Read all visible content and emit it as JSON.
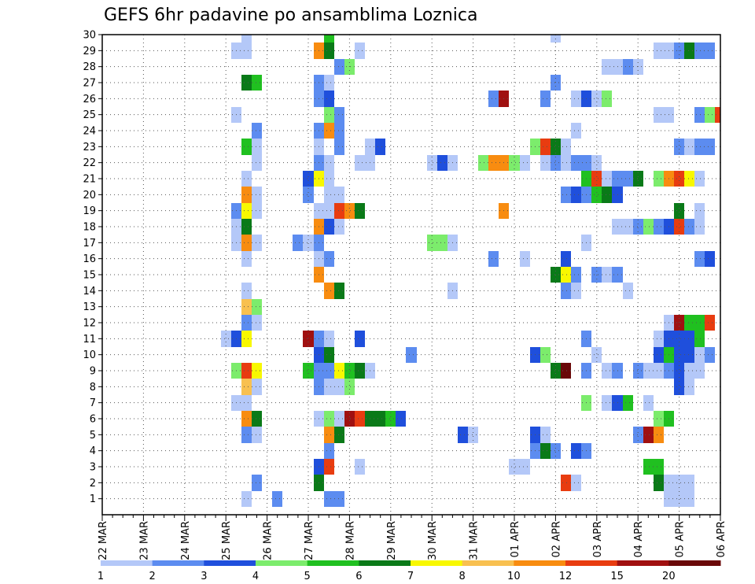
{
  "chart_data": {
    "type": "heatmap",
    "title": "GEFS 6hr padavine po ansamblima Loznica",
    "xlabel": "",
    "ylabel": "",
    "x_tick_labels": [
      "22 MAR",
      "23 MAR",
      "24 MAR",
      "25 MAR",
      "26 MAR",
      "27 MAR",
      "28 MAR",
      "29 MAR",
      "30 MAR",
      "31 MAR",
      "01 APR",
      "02 APR",
      "03 APR",
      "04 APR",
      "05 APR",
      "06 APR"
    ],
    "y_tick_labels": [
      "1",
      "2",
      "3",
      "4",
      "5",
      "6",
      "7",
      "8",
      "9",
      "10",
      "11",
      "12",
      "13",
      "14",
      "15",
      "16",
      "17",
      "18",
      "19",
      "20",
      "21",
      "22",
      "23",
      "24",
      "25",
      "26",
      "27",
      "28",
      "29",
      "30"
    ],
    "xlim": [
      0,
      60
    ],
    "ylim": [
      0,
      30
    ],
    "x_unit": "6-hour step from 22 MAR 00Z",
    "y_unit": "ensemble member",
    "grid": true,
    "colorbar": {
      "position": "bottom",
      "ticks": [
        "1",
        "2",
        "3",
        "4",
        "5",
        "6",
        "7",
        "8",
        "10",
        "12",
        "15",
        "20"
      ],
      "colors": [
        "#b4c8f8",
        "#5c8cf0",
        "#1f4fdc",
        "#7cec6c",
        "#20c020",
        "#0a7a18",
        "#f8f800",
        "#f8c050",
        "#f88c10",
        "#e83c10",
        "#a01010",
        "#6a0808"
      ]
    },
    "cells_legend": "each cell: [x step, ensemble member, precipitation class index into colorbar.colors]",
    "cells": [
      [
        14,
        1,
        0
      ],
      [
        17,
        1,
        1
      ],
      [
        22,
        1,
        1
      ],
      [
        23,
        1,
        1
      ],
      [
        55,
        1,
        0
      ],
      [
        56,
        1,
        0
      ],
      [
        57,
        1,
        0
      ],
      [
        15,
        2,
        1
      ],
      [
        21,
        2,
        5
      ],
      [
        45,
        2,
        9
      ],
      [
        46,
        2,
        0
      ],
      [
        54,
        2,
        5
      ],
      [
        55,
        2,
        0
      ],
      [
        56,
        2,
        0
      ],
      [
        57,
        2,
        0
      ],
      [
        21,
        3,
        2
      ],
      [
        22,
        3,
        9
      ],
      [
        25,
        3,
        0
      ],
      [
        40,
        3,
        0
      ],
      [
        41,
        3,
        0
      ],
      [
        53,
        3,
        4
      ],
      [
        54,
        3,
        4
      ],
      [
        22,
        4,
        1
      ],
      [
        42,
        4,
        1
      ],
      [
        43,
        4,
        5
      ],
      [
        44,
        4,
        1
      ],
      [
        46,
        4,
        2
      ],
      [
        47,
        4,
        1
      ],
      [
        14,
        5,
        1
      ],
      [
        15,
        5,
        0
      ],
      [
        22,
        5,
        8
      ],
      [
        23,
        5,
        5
      ],
      [
        35,
        5,
        2
      ],
      [
        36,
        5,
        0
      ],
      [
        42,
        5,
        2
      ],
      [
        43,
        5,
        0
      ],
      [
        52,
        5,
        1
      ],
      [
        53,
        5,
        10
      ],
      [
        54,
        5,
        8
      ],
      [
        14,
        6,
        8
      ],
      [
        15,
        6,
        5
      ],
      [
        21,
        6,
        0
      ],
      [
        22,
        6,
        3
      ],
      [
        23,
        6,
        0
      ],
      [
        24,
        6,
        10
      ],
      [
        25,
        6,
        9
      ],
      [
        26,
        6,
        5
      ],
      [
        27,
        6,
        5
      ],
      [
        28,
        6,
        4
      ],
      [
        29,
        6,
        2
      ],
      [
        54,
        6,
        3
      ],
      [
        55,
        6,
        4
      ],
      [
        13,
        7,
        0
      ],
      [
        14,
        7,
        0
      ],
      [
        47,
        7,
        3
      ],
      [
        49,
        7,
        0
      ],
      [
        50,
        7,
        2
      ],
      [
        51,
        7,
        4
      ],
      [
        53,
        7,
        0
      ],
      [
        14,
        8,
        7
      ],
      [
        15,
        8,
        0
      ],
      [
        21,
        8,
        1
      ],
      [
        22,
        8,
        0
      ],
      [
        23,
        8,
        0
      ],
      [
        24,
        8,
        3
      ],
      [
        56,
        8,
        2
      ],
      [
        57,
        8,
        0
      ],
      [
        13,
        9,
        3
      ],
      [
        14,
        9,
        9
      ],
      [
        15,
        9,
        6
      ],
      [
        20,
        9,
        4
      ],
      [
        21,
        9,
        1
      ],
      [
        22,
        9,
        1
      ],
      [
        23,
        9,
        6
      ],
      [
        24,
        9,
        4
      ],
      [
        25,
        9,
        5
      ],
      [
        26,
        9,
        0
      ],
      [
        44,
        9,
        5
      ],
      [
        45,
        9,
        11
      ],
      [
        47,
        9,
        1
      ],
      [
        49,
        9,
        0
      ],
      [
        50,
        9,
        1
      ],
      [
        52,
        9,
        1
      ],
      [
        53,
        9,
        0
      ],
      [
        54,
        9,
        0
      ],
      [
        55,
        9,
        1
      ],
      [
        56,
        9,
        2
      ],
      [
        57,
        9,
        0
      ],
      [
        58,
        9,
        0
      ],
      [
        21,
        10,
        2
      ],
      [
        22,
        10,
        5
      ],
      [
        30,
        10,
        1
      ],
      [
        42,
        10,
        2
      ],
      [
        43,
        10,
        3
      ],
      [
        48,
        10,
        0
      ],
      [
        54,
        10,
        2
      ],
      [
        55,
        10,
        4
      ],
      [
        56,
        10,
        2
      ],
      [
        57,
        10,
        2
      ],
      [
        58,
        10,
        0
      ],
      [
        59,
        10,
        1
      ],
      [
        12,
        11,
        0
      ],
      [
        13,
        11,
        2
      ],
      [
        14,
        11,
        6
      ],
      [
        20,
        11,
        10
      ],
      [
        21,
        11,
        1
      ],
      [
        22,
        11,
        0
      ],
      [
        25,
        11,
        2
      ],
      [
        47,
        11,
        1
      ],
      [
        54,
        11,
        0
      ],
      [
        55,
        11,
        2
      ],
      [
        56,
        11,
        2
      ],
      [
        57,
        11,
        2
      ],
      [
        58,
        11,
        4
      ],
      [
        14,
        12,
        1
      ],
      [
        15,
        12,
        0
      ],
      [
        55,
        12,
        0
      ],
      [
        56,
        12,
        10
      ],
      [
        57,
        12,
        4
      ],
      [
        58,
        12,
        4
      ],
      [
        59,
        12,
        9
      ],
      [
        14,
        13,
        7
      ],
      [
        15,
        13,
        3
      ],
      [
        14,
        14,
        0
      ],
      [
        22,
        14,
        8
      ],
      [
        23,
        14,
        5
      ],
      [
        34,
        14,
        0
      ],
      [
        45,
        14,
        1
      ],
      [
        46,
        14,
        0
      ],
      [
        51,
        14,
        0
      ],
      [
        21,
        15,
        8
      ],
      [
        44,
        15,
        5
      ],
      [
        45,
        15,
        6
      ],
      [
        46,
        15,
        1
      ],
      [
        48,
        15,
        1
      ],
      [
        49,
        15,
        0
      ],
      [
        50,
        15,
        1
      ],
      [
        14,
        16,
        0
      ],
      [
        21,
        16,
        0
      ],
      [
        22,
        16,
        1
      ],
      [
        38,
        16,
        1
      ],
      [
        41,
        16,
        0
      ],
      [
        45,
        16,
        2
      ],
      [
        58,
        16,
        1
      ],
      [
        59,
        16,
        2
      ],
      [
        13,
        17,
        0
      ],
      [
        14,
        17,
        8
      ],
      [
        15,
        17,
        0
      ],
      [
        19,
        17,
        1
      ],
      [
        20,
        17,
        0
      ],
      [
        21,
        17,
        1
      ],
      [
        32,
        17,
        3
      ],
      [
        33,
        17,
        3
      ],
      [
        34,
        17,
        0
      ],
      [
        47,
        17,
        0
      ],
      [
        13,
        18,
        0
      ],
      [
        14,
        18,
        5
      ],
      [
        21,
        18,
        8
      ],
      [
        22,
        18,
        2
      ],
      [
        23,
        18,
        0
      ],
      [
        50,
        18,
        0
      ],
      [
        51,
        18,
        0
      ],
      [
        52,
        18,
        1
      ],
      [
        53,
        18,
        3
      ],
      [
        54,
        18,
        1
      ],
      [
        55,
        18,
        2
      ],
      [
        56,
        18,
        9
      ],
      [
        57,
        18,
        1
      ],
      [
        58,
        18,
        0
      ],
      [
        13,
        19,
        1
      ],
      [
        14,
        19,
        6
      ],
      [
        15,
        19,
        0
      ],
      [
        21,
        19,
        0
      ],
      [
        22,
        19,
        0
      ],
      [
        23,
        19,
        9
      ],
      [
        24,
        19,
        8
      ],
      [
        25,
        19,
        5
      ],
      [
        39,
        19,
        8
      ],
      [
        56,
        19,
        5
      ],
      [
        58,
        19,
        0
      ],
      [
        14,
        20,
        8
      ],
      [
        15,
        20,
        0
      ],
      [
        20,
        20,
        1
      ],
      [
        22,
        20,
        0
      ],
      [
        23,
        20,
        0
      ],
      [
        45,
        20,
        1
      ],
      [
        46,
        20,
        2
      ],
      [
        47,
        20,
        1
      ],
      [
        48,
        20,
        4
      ],
      [
        49,
        20,
        5
      ],
      [
        50,
        20,
        2
      ],
      [
        14,
        21,
        0
      ],
      [
        20,
        21,
        2
      ],
      [
        21,
        21,
        6
      ],
      [
        22,
        21,
        0
      ],
      [
        47,
        21,
        4
      ],
      [
        48,
        21,
        9
      ],
      [
        49,
        21,
        0
      ],
      [
        50,
        21,
        1
      ],
      [
        51,
        21,
        1
      ],
      [
        52,
        21,
        5
      ],
      [
        54,
        21,
        3
      ],
      [
        55,
        21,
        8
      ],
      [
        56,
        21,
        9
      ],
      [
        57,
        21,
        6
      ],
      [
        58,
        21,
        0
      ],
      [
        15,
        22,
        0
      ],
      [
        21,
        22,
        1
      ],
      [
        22,
        22,
        0
      ],
      [
        25,
        22,
        0
      ],
      [
        26,
        22,
        0
      ],
      [
        32,
        22,
        0
      ],
      [
        33,
        22,
        2
      ],
      [
        34,
        22,
        0
      ],
      [
        37,
        22,
        3
      ],
      [
        38,
        22,
        8
      ],
      [
        39,
        22,
        8
      ],
      [
        40,
        22,
        3
      ],
      [
        41,
        22,
        0
      ],
      [
        43,
        22,
        0
      ],
      [
        44,
        22,
        1
      ],
      [
        45,
        22,
        0
      ],
      [
        46,
        22,
        1
      ],
      [
        47,
        22,
        1
      ],
      [
        48,
        22,
        0
      ],
      [
        14,
        23,
        4
      ],
      [
        15,
        23,
        0
      ],
      [
        21,
        23,
        0
      ],
      [
        23,
        23,
        1
      ],
      [
        26,
        23,
        0
      ],
      [
        27,
        23,
        2
      ],
      [
        42,
        23,
        3
      ],
      [
        43,
        23,
        9
      ],
      [
        44,
        23,
        5
      ],
      [
        45,
        23,
        0
      ],
      [
        56,
        23,
        1
      ],
      [
        57,
        23,
        0
      ],
      [
        58,
        23,
        1
      ],
      [
        59,
        23,
        1
      ],
      [
        15,
        24,
        1
      ],
      [
        21,
        24,
        1
      ],
      [
        22,
        24,
        8
      ],
      [
        23,
        24,
        1
      ],
      [
        46,
        24,
        0
      ],
      [
        13,
        25,
        0
      ],
      [
        22,
        25,
        3
      ],
      [
        23,
        25,
        1
      ],
      [
        54,
        25,
        0
      ],
      [
        55,
        25,
        0
      ],
      [
        58,
        25,
        1
      ],
      [
        59,
        25,
        3
      ],
      [
        60,
        25,
        9
      ],
      [
        21,
        26,
        1
      ],
      [
        22,
        26,
        2
      ],
      [
        38,
        26,
        1
      ],
      [
        39,
        26,
        10
      ],
      [
        43,
        26,
        1
      ],
      [
        46,
        26,
        0
      ],
      [
        47,
        26,
        2
      ],
      [
        48,
        26,
        0
      ],
      [
        49,
        26,
        3
      ],
      [
        14,
        27,
        5
      ],
      [
        15,
        27,
        4
      ],
      [
        21,
        27,
        1
      ],
      [
        22,
        27,
        0
      ],
      [
        44,
        27,
        1
      ],
      [
        23,
        28,
        1
      ],
      [
        24,
        28,
        3
      ],
      [
        49,
        28,
        0
      ],
      [
        50,
        28,
        0
      ],
      [
        51,
        28,
        1
      ],
      [
        52,
        28,
        0
      ],
      [
        13,
        29,
        0
      ],
      [
        14,
        29,
        0
      ],
      [
        21,
        29,
        8
      ],
      [
        22,
        29,
        5
      ],
      [
        25,
        29,
        0
      ],
      [
        54,
        29,
        0
      ],
      [
        55,
        29,
        0
      ],
      [
        56,
        29,
        1
      ],
      [
        57,
        29,
        5
      ],
      [
        58,
        29,
        1
      ],
      [
        59,
        29,
        1
      ],
      [
        14,
        30,
        0
      ],
      [
        22,
        30,
        4
      ],
      [
        44,
        30,
        0
      ]
    ]
  }
}
